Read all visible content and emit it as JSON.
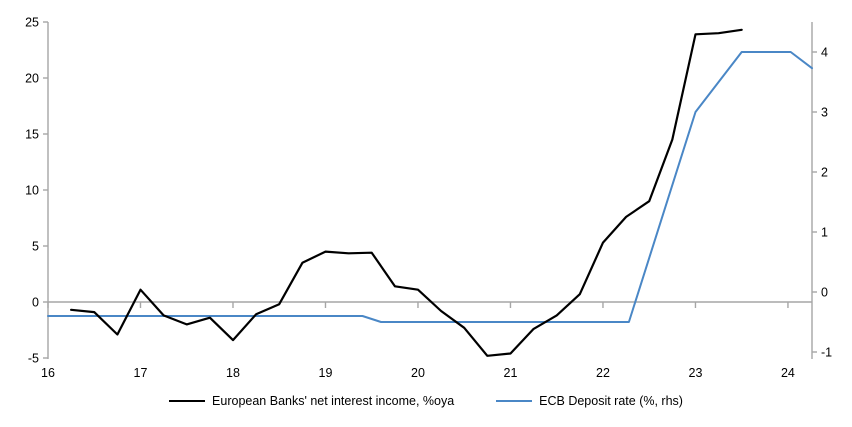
{
  "chart_data": {
    "type": "line",
    "title": "",
    "xlabel": "",
    "ylabel_left": "",
    "ylabel_right": "",
    "grid": false,
    "legend_position": "bottom-center",
    "x_axis": {
      "min": 16,
      "max": 24.26,
      "tick_values": [
        16,
        17,
        18,
        19,
        20,
        21,
        22,
        23,
        24
      ],
      "tick_labels": [
        "16",
        "17",
        "18",
        "19",
        "20",
        "21",
        "22",
        "23",
        "24"
      ]
    },
    "y_axis_left": {
      "min": -5,
      "max": 25,
      "tick_values": [
        25,
        20,
        15,
        10,
        5,
        0,
        -5
      ],
      "tick_labels": [
        "25",
        "20",
        "15",
        "10",
        "5",
        "0",
        "-5"
      ]
    },
    "y_axis_right": {
      "min": -1.1,
      "max": 4.5,
      "tick_values": [
        4,
        3,
        2,
        1,
        0,
        -1
      ],
      "tick_labels": [
        "4",
        "3",
        "2",
        "1",
        "0",
        "-1"
      ]
    },
    "zero_line_value": 0,
    "series": [
      {
        "name": "European Banks' net interest income, %oya",
        "axis": "left",
        "color": "#000000",
        "stroke_width": 2.2,
        "points": [
          [
            16.25,
            -0.7
          ],
          [
            16.5,
            -0.9
          ],
          [
            16.75,
            -2.9
          ],
          [
            17.0,
            1.1
          ],
          [
            17.25,
            -1.2
          ],
          [
            17.5,
            -2.0
          ],
          [
            17.75,
            -1.4
          ],
          [
            18.0,
            -3.4
          ],
          [
            18.25,
            -1.1
          ],
          [
            18.5,
            -0.2
          ],
          [
            18.75,
            3.5
          ],
          [
            19.0,
            4.5
          ],
          [
            19.25,
            4.35
          ],
          [
            19.5,
            4.4
          ],
          [
            19.75,
            1.4
          ],
          [
            20.0,
            1.1
          ],
          [
            20.25,
            -0.8
          ],
          [
            20.5,
            -2.3
          ],
          [
            20.75,
            -4.8
          ],
          [
            21.0,
            -4.6
          ],
          [
            21.25,
            -2.4
          ],
          [
            21.5,
            -1.2
          ],
          [
            21.75,
            0.7
          ],
          [
            22.0,
            5.3
          ],
          [
            22.25,
            7.6
          ],
          [
            22.5,
            9.0
          ],
          [
            22.75,
            14.5
          ],
          [
            23.0,
            23.9
          ],
          [
            23.25,
            24.0
          ],
          [
            23.5,
            24.3
          ]
        ]
      },
      {
        "name": "ECB Deposit rate (%, rhs)",
        "axis": "right",
        "color": "#4a87c6",
        "stroke_width": 2,
        "points": [
          [
            16.0,
            -0.4
          ],
          [
            19.4,
            -0.4
          ],
          [
            19.6,
            -0.5
          ],
          [
            22.28,
            -0.5
          ],
          [
            23.0,
            3.0
          ],
          [
            23.5,
            4.0
          ],
          [
            24.03,
            4.0
          ],
          [
            24.26,
            3.73
          ]
        ]
      }
    ]
  },
  "styles": {
    "axis_color": "#a6a6a6",
    "zero_line_color": "#a6a6a6",
    "background_color": "#ffffff",
    "label_color": "#000000"
  }
}
